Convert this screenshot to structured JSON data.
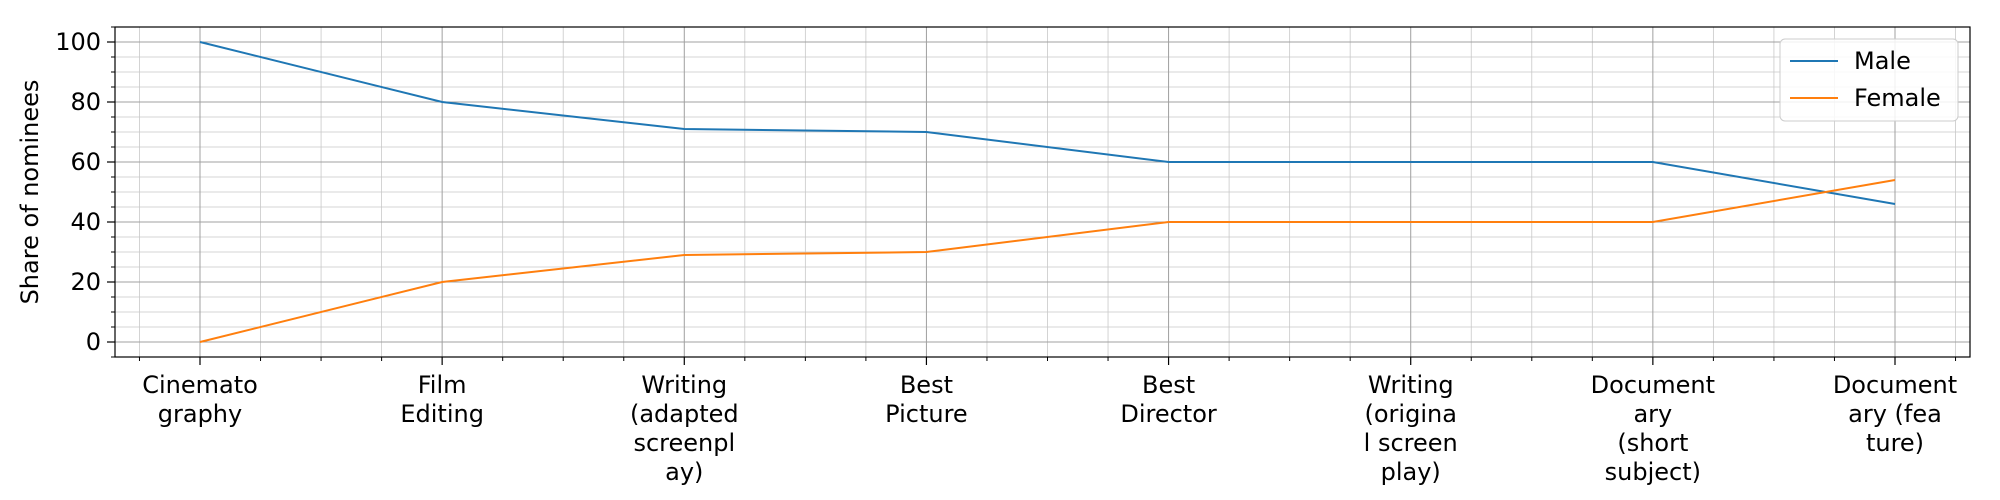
{
  "chart_data": {
    "type": "line",
    "title": "",
    "xlabel": "",
    "ylabel": "Share of nominees",
    "ylim": [
      -5,
      105
    ],
    "yticks": [
      0,
      20,
      40,
      60,
      80,
      100
    ],
    "categories": [
      [
        "Cinemato",
        "graphy"
      ],
      [
        "Film",
        "Editing"
      ],
      [
        "Writing",
        "(adapted",
        "screenpl",
        "ay)"
      ],
      [
        "Best",
        "Picture"
      ],
      [
        "Best",
        "Director"
      ],
      [
        "Writing",
        "(origina",
        "l screen",
        "play)"
      ],
      [
        "Document",
        "ary",
        "(short",
        "subject)"
      ],
      [
        "Document",
        "ary (fea",
        "ture)"
      ]
    ],
    "series": [
      {
        "name": "Male",
        "color": "#1f77b4",
        "values": [
          100,
          80,
          71,
          70,
          60,
          60,
          60,
          46
        ]
      },
      {
        "name": "Female",
        "color": "#ff7f0e",
        "values": [
          0,
          20,
          29,
          30,
          40,
          40,
          40,
          54
        ]
      }
    ],
    "grid": true,
    "minor_grid": true,
    "legend_position": "top-right"
  }
}
